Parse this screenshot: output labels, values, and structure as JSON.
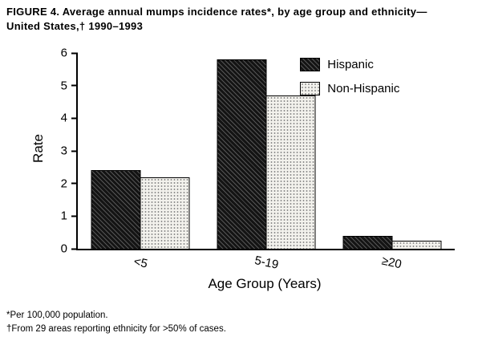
{
  "figure": {
    "title_line1": "FIGURE 4. Average annual mumps incidence rates*, by age group and ethnicity—",
    "title_line2": "United States,† 1990–1993",
    "footnote1": "*Per 100,000 population.",
    "footnote2": "†From 29 areas reporting ethnicity for >50% of cases."
  },
  "chart_data": {
    "type": "bar",
    "title": "FIGURE 4. Average annual mumps incidence rates*, by age group and ethnicity—United States,† 1990–1993",
    "categories": [
      "<5",
      "5-19",
      "≥20"
    ],
    "series": [
      {
        "name": "Hispanic",
        "values": [
          2.4,
          5.8,
          0.4
        ],
        "pattern": "dark-hatch"
      },
      {
        "name": "Non-Hispanic",
        "values": [
          2.2,
          4.7,
          0.25
        ],
        "pattern": "light-stipple"
      }
    ],
    "xlabel": "Age Group (Years)",
    "ylabel": "Rate",
    "ylim": [
      0,
      6
    ],
    "yticks": [
      0,
      1,
      2,
      3,
      4,
      5,
      6
    ],
    "legend_position": "top-right",
    "grid": false
  }
}
